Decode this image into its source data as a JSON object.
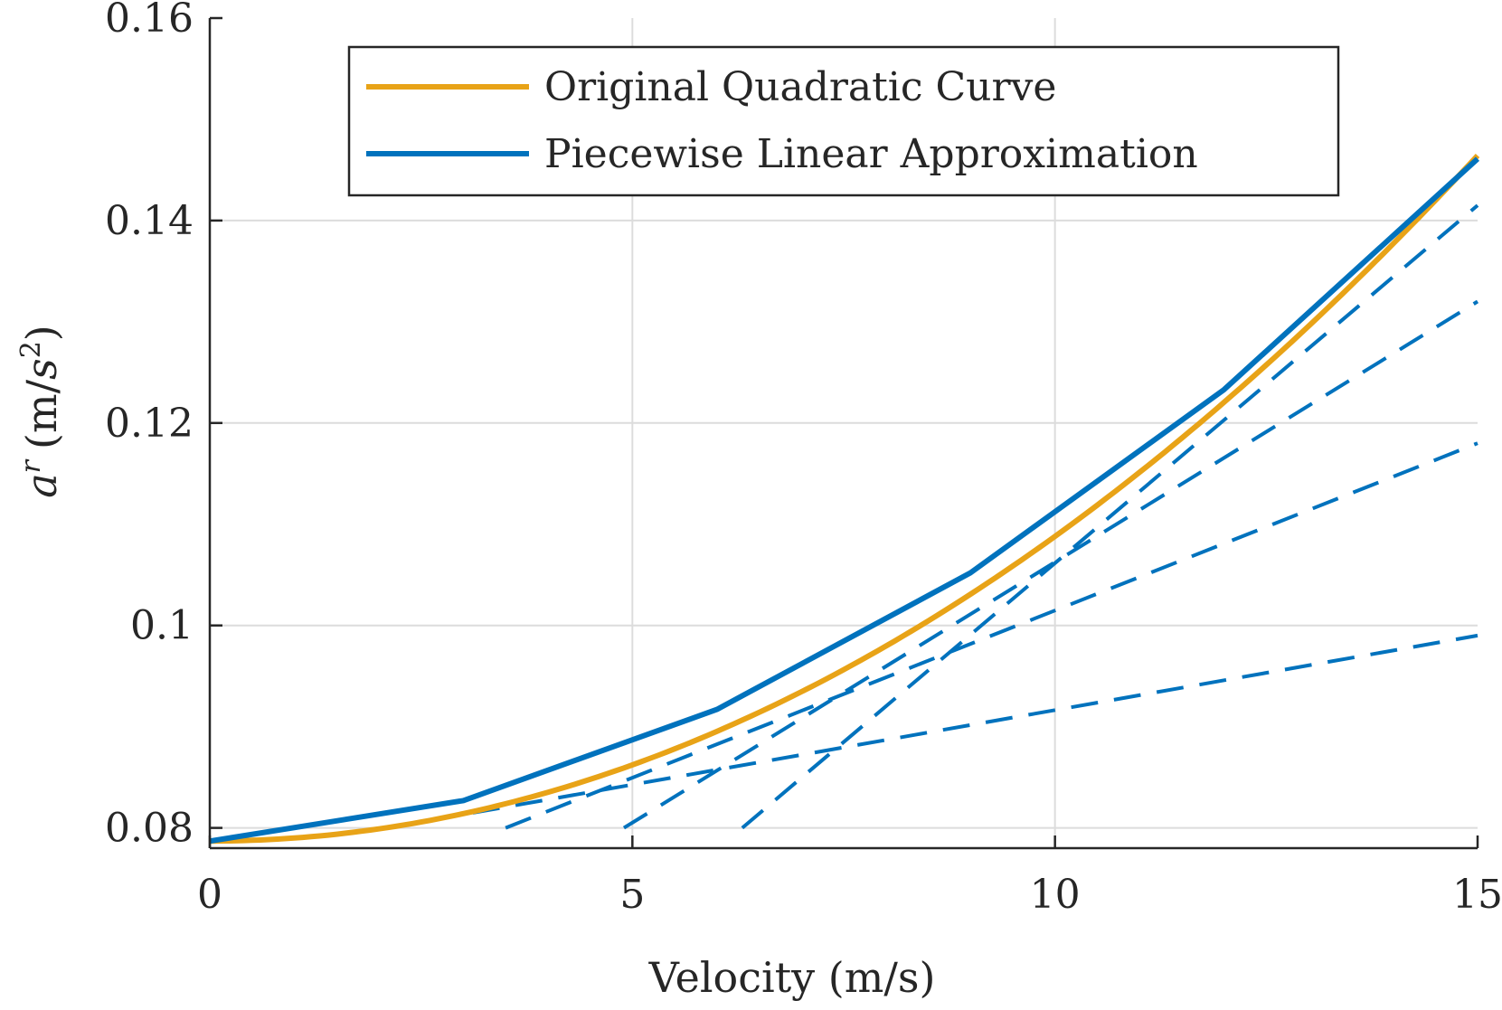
{
  "chart_data": {
    "type": "line",
    "title": "",
    "xlabel": "Velocity (m/s)",
    "ylabel": {
      "symbol": "a",
      "superscript": "r",
      "units_open": "(m/",
      "units_var": "s",
      "units_exp": "2",
      "units_close": ")"
    },
    "xlim": [
      0,
      15
    ],
    "ylim": [
      0.078,
      0.16
    ],
    "xticks": [
      0,
      5,
      10,
      15
    ],
    "xtick_labels": [
      "0",
      "5",
      "10",
      "15"
    ],
    "yticks": [
      0.08,
      0.1,
      0.12,
      0.14,
      0.16
    ],
    "ytick_labels": [
      "0.08",
      "0.1",
      "0.12",
      "0.14",
      "0.16"
    ],
    "grid": true,
    "legend_position": "top-center",
    "series": [
      {
        "name": "Original Quadratic Curve",
        "color": "#E8A317",
        "style": "solid",
        "quadratic": {
          "a0": 0.0787,
          "a1": 0.0,
          "a2": 0.000301
        },
        "x_range": [
          0,
          15
        ]
      },
      {
        "name": "Piecewise Linear Approximation",
        "color": "#0072BD",
        "style": "solid",
        "x": [
          0,
          3,
          6,
          9,
          12,
          15
        ],
        "y": [
          0.0787,
          0.0827,
          0.0917,
          0.1052,
          0.1233,
          0.1461
        ]
      }
    ],
    "tangent_lines": {
      "color": "#0072BD",
      "style": "dashed",
      "lines": [
        {
          "x_start": 2.1,
          "x_end": 15,
          "y_start": 0.08,
          "y_end": 0.099
        },
        {
          "x_start": 3.5,
          "x_end": 15,
          "y_start": 0.08,
          "y_end": 0.118
        },
        {
          "x_start": 4.9,
          "x_end": 15,
          "y_start": 0.08,
          "y_end": 0.132
        },
        {
          "x_start": 6.3,
          "x_end": 15,
          "y_start": 0.08,
          "y_end": 0.1415
        }
      ]
    }
  }
}
